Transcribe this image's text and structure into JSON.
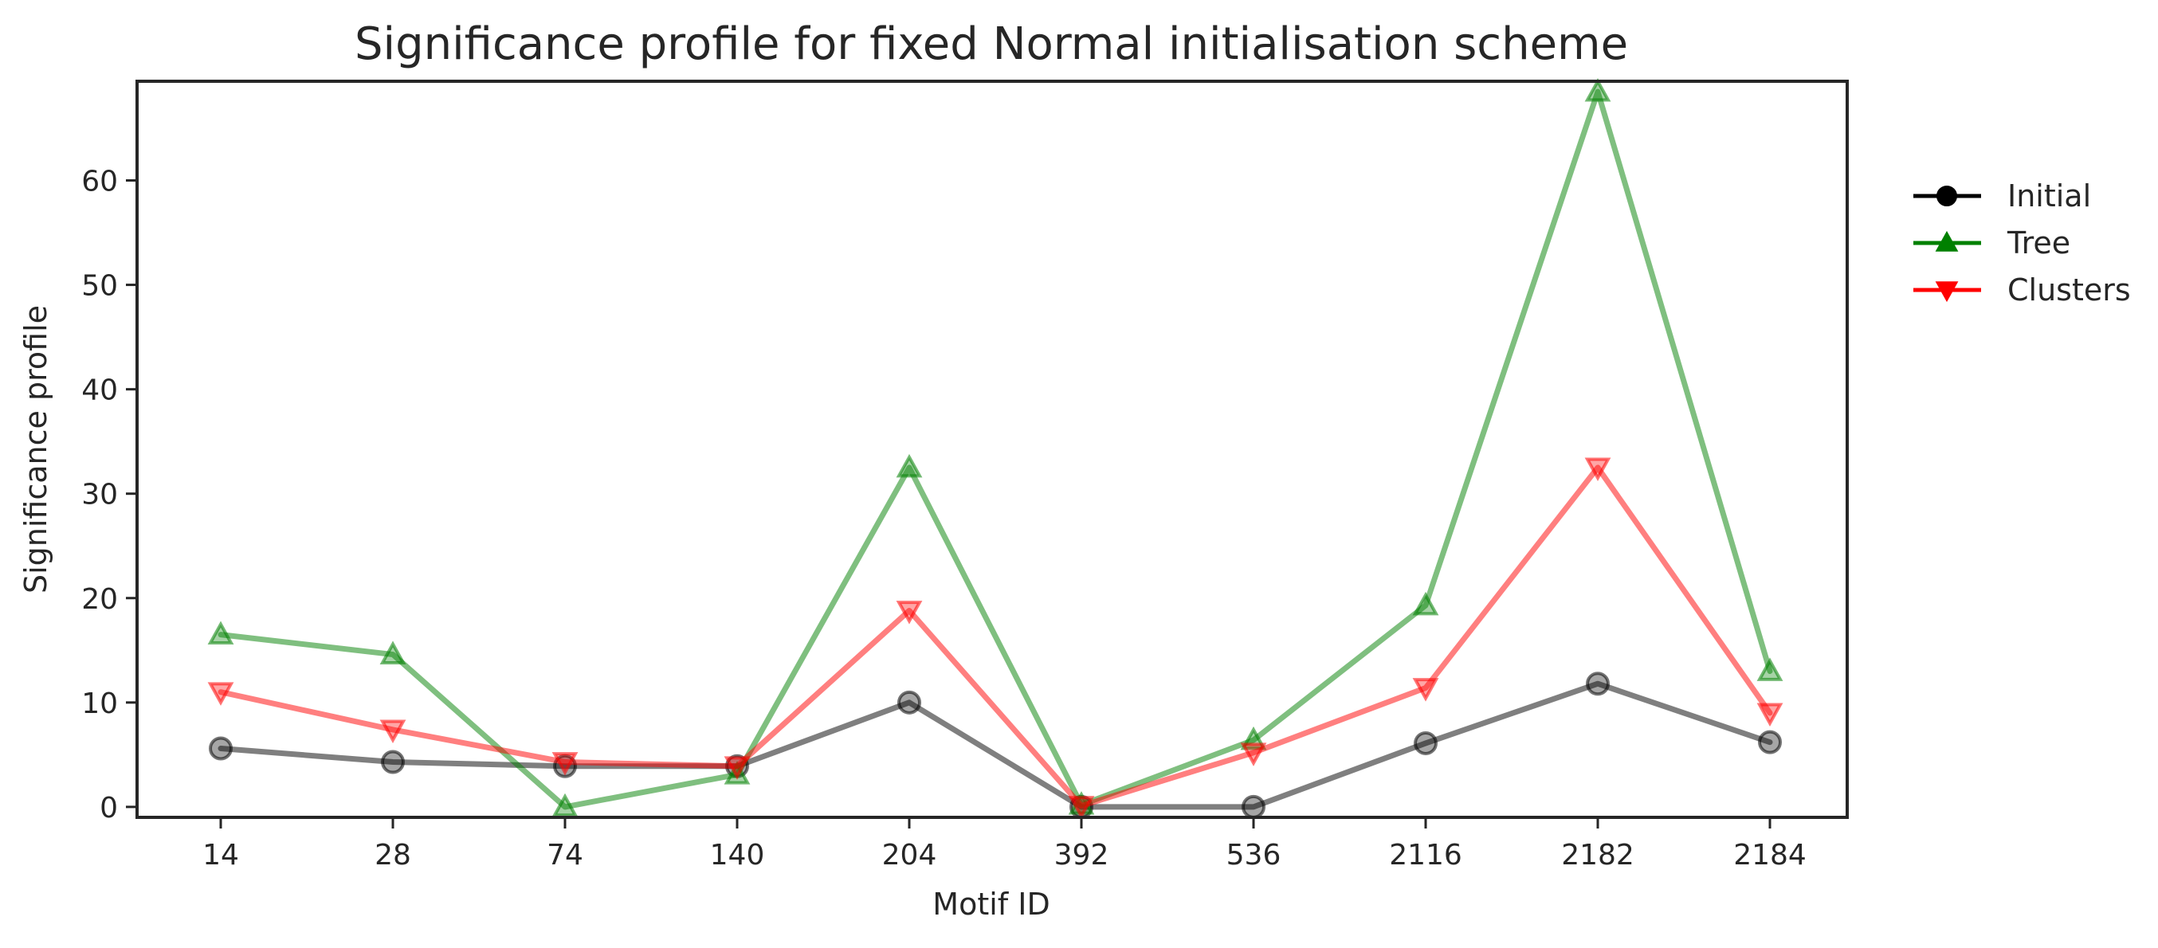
{
  "chart_data": {
    "type": "line",
    "title": "Significance profile for fixed Normal initialisation scheme",
    "xlabel": "Motif ID",
    "ylabel": "Significance profile",
    "categories": [
      "14",
      "28",
      "74",
      "140",
      "204",
      "392",
      "536",
      "2116",
      "2182",
      "2184"
    ],
    "ylim": [
      -1,
      69.5
    ],
    "yticks": [
      0,
      10,
      20,
      30,
      40,
      50,
      60
    ],
    "grid": false,
    "legend_position": "outside-right",
    "series": [
      {
        "name": "Initial",
        "color": "#000000",
        "marker": "circle",
        "values": [
          5.6,
          4.3,
          3.9,
          3.9,
          10.0,
          0.0,
          0.0,
          6.1,
          11.8,
          6.2
        ]
      },
      {
        "name": "Tree",
        "color": "#008000",
        "marker": "triangle-up",
        "values": [
          16.5,
          14.6,
          0.0,
          3.1,
          32.5,
          0.2,
          6.4,
          19.3,
          68.5,
          13.0
        ]
      },
      {
        "name": "Clusters",
        "color": "#ff0000",
        "marker": "triangle-down",
        "values": [
          11.0,
          7.4,
          4.3,
          3.9,
          18.8,
          0.1,
          5.2,
          11.4,
          32.5,
          9.0
        ]
      }
    ]
  }
}
